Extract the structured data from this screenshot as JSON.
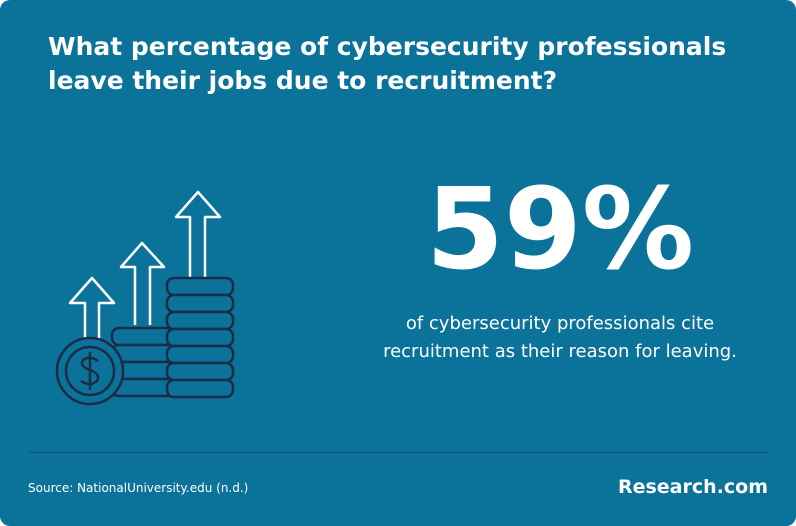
{
  "header": {
    "title": "What percentage of cybersecurity professionals leave their jobs due to recruitment?"
  },
  "stat": {
    "value": "59%",
    "description": [
      "of cybersecurity professionals cite",
      "recruitment as their reason for leaving."
    ]
  },
  "footer": {
    "source": "Source: NationalUniversity.edu (n.d.)",
    "brand": "Research.com"
  }
}
